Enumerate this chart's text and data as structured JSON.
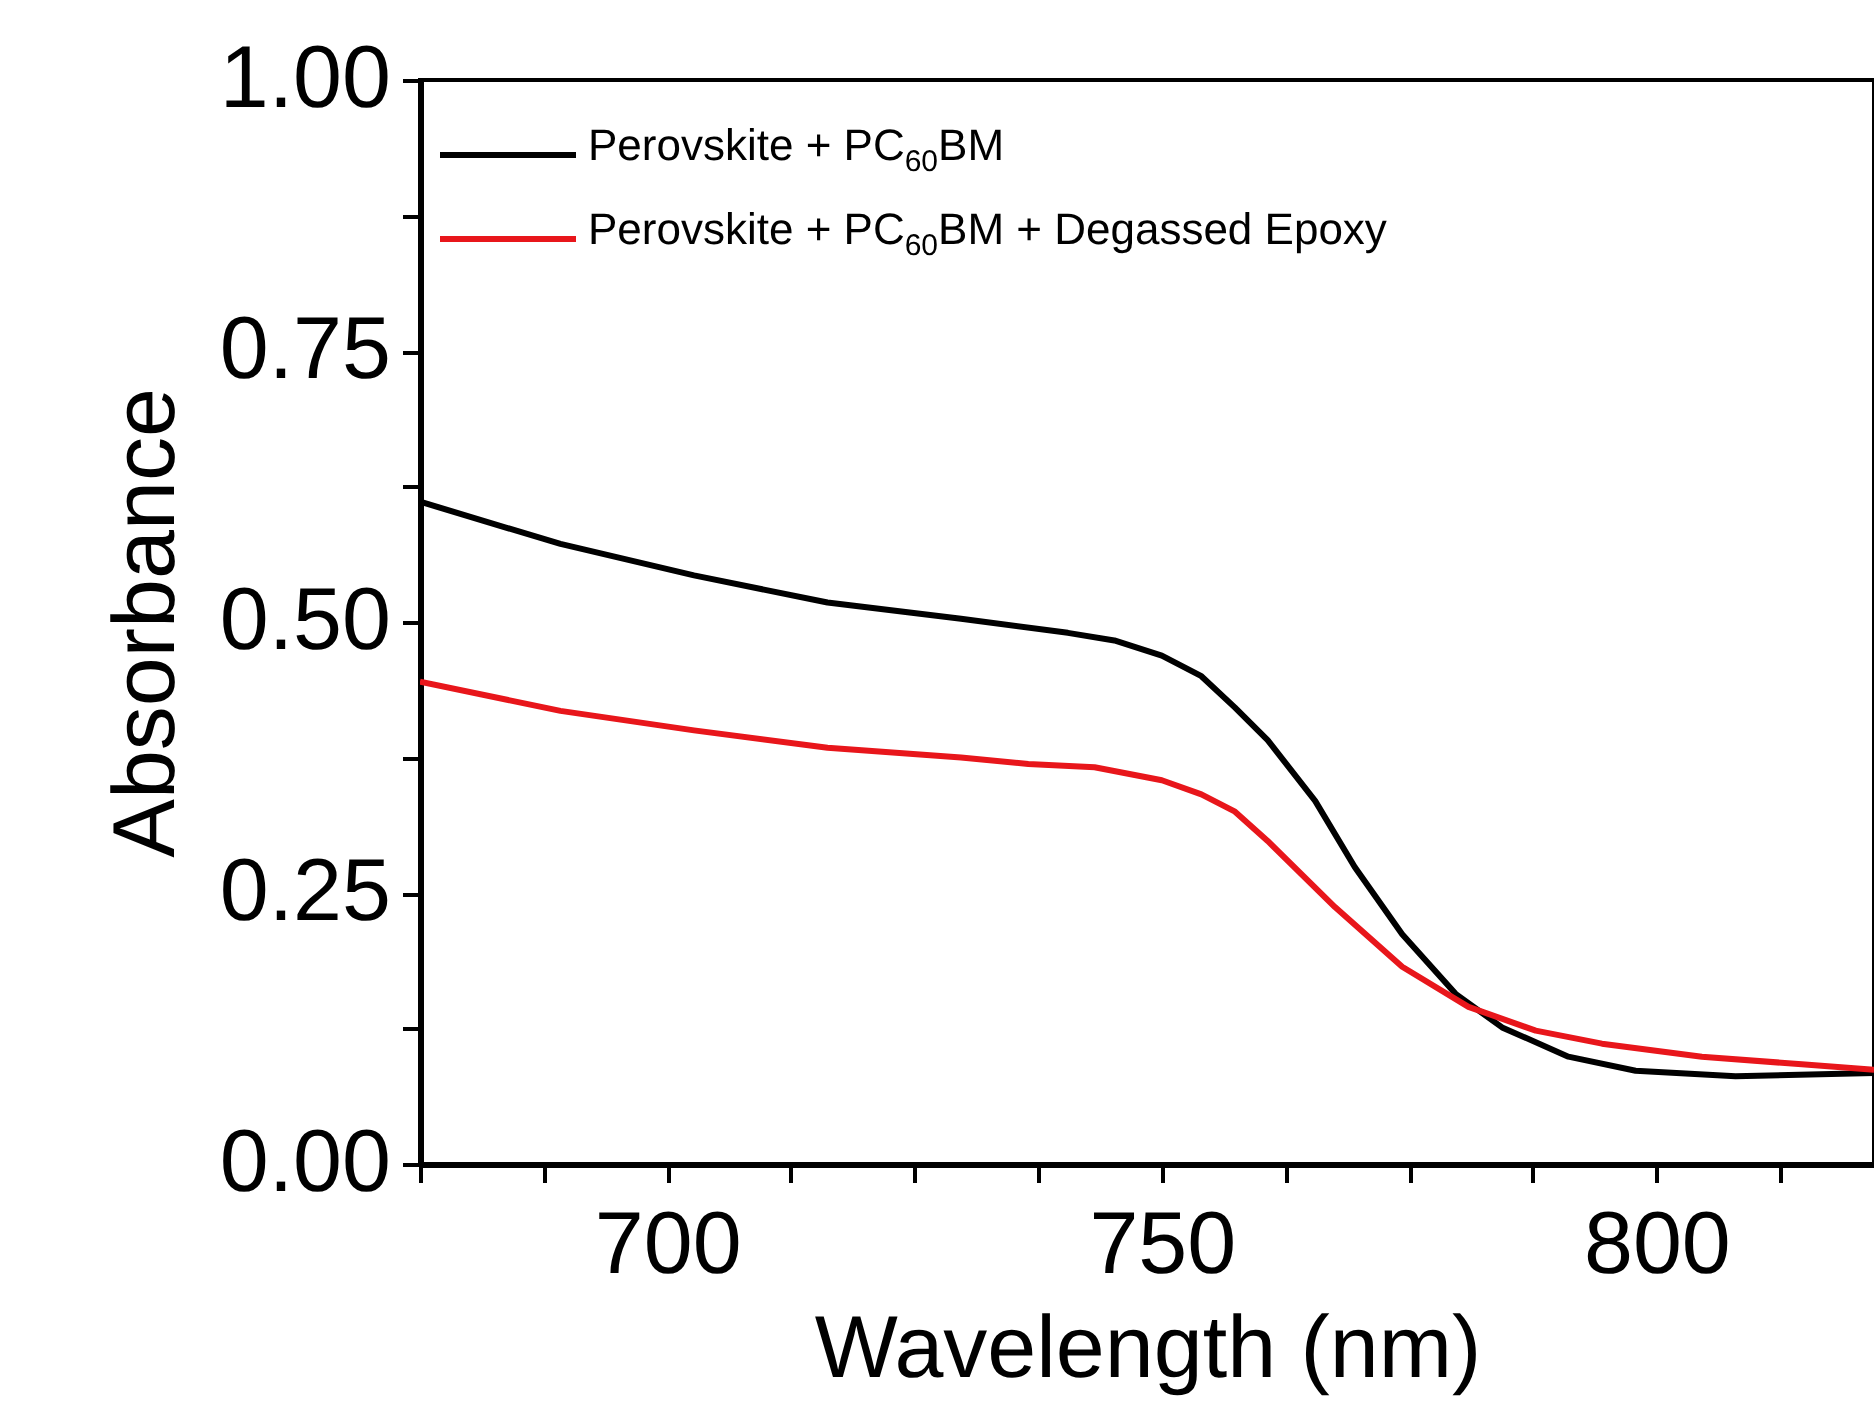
{
  "chart_data": {
    "type": "line",
    "xlabel": "Wavelength (nm)",
    "ylabel": "Absorbance",
    "xlim": [
      675,
      822
    ],
    "ylim": [
      0,
      1
    ],
    "xticks": [
      {
        "value": 675,
        "label": null
      },
      {
        "value": 687.5,
        "label": null
      },
      700,
      {
        "value": 712.5,
        "label": null
      },
      {
        "value": 725,
        "label": null
      },
      {
        "value": 737.5,
        "label": null
      },
      750,
      {
        "value": 762.5,
        "label": null
      },
      {
        "value": 775,
        "label": null
      },
      {
        "value": 787.5,
        "label": null
      },
      800,
      {
        "value": 812.5,
        "label": null
      }
    ],
    "yticks": [
      {
        "value": 0,
        "label": "0.00"
      },
      {
        "value": 0.125,
        "label": null
      },
      {
        "value": 0.25,
        "label": "0.25"
      },
      {
        "value": 0.375,
        "label": null
      },
      {
        "value": 0.5,
        "label": "0.50"
      },
      {
        "value": 0.625,
        "label": null
      },
      {
        "value": 0.75,
        "label": "0.75"
      },
      {
        "value": 0.875,
        "label": null
      },
      {
        "value": 1,
        "label": "1.00"
      }
    ],
    "grid": false,
    "legend": "top left",
    "series": [
      {
        "name": "Perovskite + PC$_{60}$BM",
        "color": "#000000",
        "x": [
          675,
          689.2,
          702.7,
          716.2,
          729.7,
          740.5,
          745.2,
          750,
          754,
          757.4,
          760.7,
          765.5,
          769.5,
          774.3,
          779.7,
          784.4,
          791.1,
          797.9,
          808,
          822
        ],
        "values": [
          0.611,
          0.572,
          0.543,
          0.518,
          0.503,
          0.49,
          0.483,
          0.469,
          0.45,
          0.421,
          0.391,
          0.335,
          0.274,
          0.212,
          0.157,
          0.126,
          0.099,
          0.086,
          0.081,
          0.084
        ]
      },
      {
        "name": "Perovskite + PC$_{60}$BM + Degassed Epoxy",
        "color": "#e8161b",
        "x": [
          675,
          689.2,
          702.7,
          716.2,
          729.7,
          736.5,
          743.2,
          750,
          754,
          757.4,
          760.7,
          767.5,
          774.3,
          781,
          787.8,
          794.5,
          804.6,
          814.7,
          822
        ],
        "values": [
          0.445,
          0.418,
          0.4,
          0.384,
          0.375,
          0.369,
          0.366,
          0.354,
          0.341,
          0.325,
          0.298,
          0.237,
          0.182,
          0.145,
          0.123,
          0.111,
          0.099,
          0.092,
          0.087
        ]
      }
    ]
  }
}
